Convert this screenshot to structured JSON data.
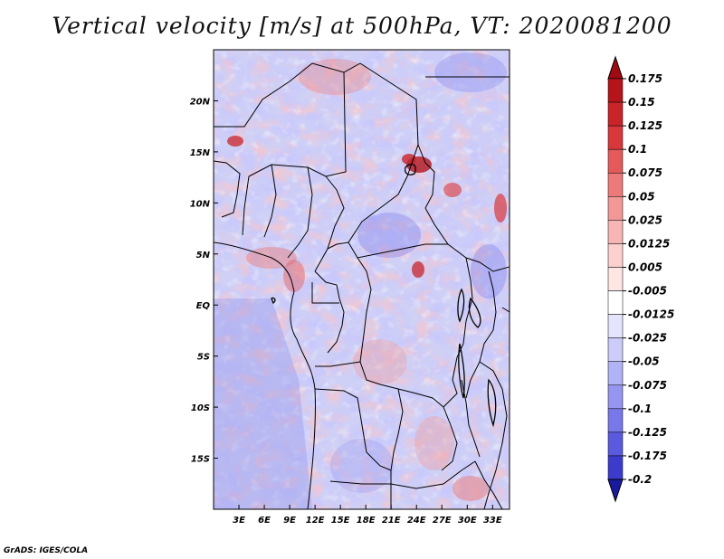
{
  "title": "Vertical velocity [m/s] at 500hPa, VT: 2020081200",
  "footer": "GrADS: IGES/COLA",
  "map": {
    "lon_range": [
      0,
      35
    ],
    "lat_range": [
      -20,
      25
    ],
    "lat_ticks": [
      {
        "value": 20,
        "label": "20N"
      },
      {
        "value": 15,
        "label": "15N"
      },
      {
        "value": 10,
        "label": "10N"
      },
      {
        "value": 5,
        "label": "5N"
      },
      {
        "value": 0,
        "label": "EQ"
      },
      {
        "value": -5,
        "label": "5S"
      },
      {
        "value": -10,
        "label": "10S"
      },
      {
        "value": -15,
        "label": "15S"
      }
    ],
    "lon_ticks": [
      {
        "value": 3,
        "label": "3E"
      },
      {
        "value": 6,
        "label": "6E"
      },
      {
        "value": 9,
        "label": "9E"
      },
      {
        "value": 12,
        "label": "12E"
      },
      {
        "value": 15,
        "label": "15E"
      },
      {
        "value": 18,
        "label": "18E"
      },
      {
        "value": 21,
        "label": "21E"
      },
      {
        "value": 24,
        "label": "24E"
      },
      {
        "value": 27,
        "label": "27E"
      },
      {
        "value": 30,
        "label": "30E"
      },
      {
        "value": 33,
        "label": "33E"
      }
    ]
  },
  "colorbar": {
    "levels": [
      {
        "label": "0.175",
        "color": "#b4141a"
      },
      {
        "label": "0.15",
        "color": "#c8242a"
      },
      {
        "label": "0.125",
        "color": "#d8383c"
      },
      {
        "label": "0.1",
        "color": "#e45a5a"
      },
      {
        "label": "0.075",
        "color": "#ec7a78"
      },
      {
        "label": "0.05",
        "color": "#f29896"
      },
      {
        "label": "0.025",
        "color": "#f7b6b4"
      },
      {
        "label": "0.0125",
        "color": "#fbd0ce"
      },
      {
        "label": "0.005",
        "color": "#fde6e4"
      },
      {
        "label": "-0.005",
        "color": "#ffffff"
      },
      {
        "label": "-0.0125",
        "color": "#e4e4fc"
      },
      {
        "label": "-0.025",
        "color": "#ccccfa"
      },
      {
        "label": "-0.05",
        "color": "#b2b2f6"
      },
      {
        "label": "-0.075",
        "color": "#9696f0"
      },
      {
        "label": "-0.1",
        "color": "#7878ea"
      },
      {
        "label": "-0.125",
        "color": "#5a5ade"
      },
      {
        "label": "-0.175",
        "color": "#3c3ccc"
      },
      {
        "label": "-0.2",
        "color": "#2626b4"
      }
    ],
    "top_color": "#a00a10",
    "bottom_color": "#1a1aa0"
  }
}
